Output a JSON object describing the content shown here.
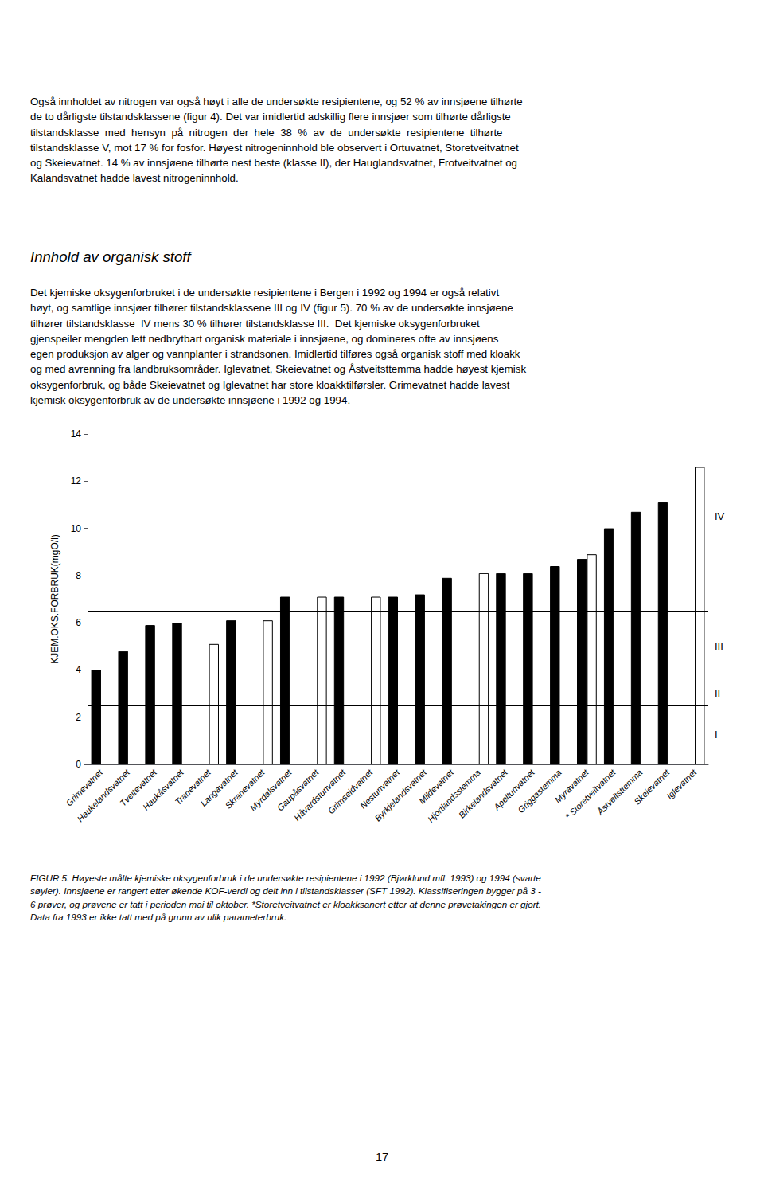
{
  "chart_data": {
    "type": "bar",
    "ylabel": "KJEM.OKS.FORBRUK(mgO/l)",
    "categories": [
      "Grimevatnet",
      "Haukelandsvatnet",
      "Tveitevatnet",
      "Haukåsvatnet",
      "Tranevatnet",
      "Langavatnet",
      "Skranevatnet",
      "Myrdalsvatnet",
      "Gaupåsvatnet",
      "Håvardstunvatnet",
      "Grimseidvatnet",
      "Nestunvatnet",
      "Byrkjelandsvatnet",
      "Mildevatnet",
      "Hjortlandsstemma",
      "Birkelandsvatnet",
      "Apeltunvatnet",
      "Griggastemma",
      "Myravatnet",
      "* Storetveitvatnet",
      "Åstveitsttemma",
      "Skeievatnet",
      "Iglevatnet"
    ],
    "series": [
      {
        "color": "black",
        "values": [
          4.0,
          4.8,
          5.9,
          6.0,
          null,
          6.1,
          null,
          7.1,
          null,
          7.1,
          null,
          7.1,
          7.2,
          7.9,
          null,
          8.1,
          8.1,
          8.4,
          8.7,
          10.0,
          10.7,
          11.1,
          null
        ]
      },
      {
        "color": "white",
        "values": [
          null,
          null,
          null,
          null,
          5.1,
          null,
          6.1,
          null,
          7.1,
          null,
          7.1,
          null,
          null,
          null,
          8.1,
          null,
          null,
          null,
          8.9,
          null,
          null,
          null,
          12.6
        ]
      }
    ],
    "ylim": [
      0,
      14
    ],
    "yticks": [
      0,
      2,
      4,
      6,
      8,
      10,
      12,
      14
    ],
    "class_lines": [
      2.5,
      3.5,
      6.5
    ],
    "annotations": [
      {
        "text": "I",
        "y": 1.25
      },
      {
        "text": "II",
        "y": 3.0
      },
      {
        "text": "III",
        "y": 5.0
      },
      {
        "text": "IV",
        "y": 10.5
      }
    ],
    "grid": false,
    "legend": false
  },
  "top_paragraph": "Også innholdet av nitrogen var også høyt i alle de undersøkte resipientene, og 52 % av innsjøene tilhørte\nde to dårligste tilstandsklassene (figur 4). Det var imidlertid adskillig flere innsjøer som tilhørte dårligste\ntilstandsklasse  med  hensyn  på  nitrogen  der  hele  38  %  av  de  undersøkte  resipientene  tilhørte\ntilstandsklasse V, mot 17 % for fosfor. Høyest nitrogeninnhold ble observert i Ortuvatnet, Storetveitvatnet\nog Skeievatnet. 14 % av innsjøene tilhørte nest beste (klasse II), der Hauglandsvatnet, Frotveitvatnet og\nKalandsvatnet hadde lavest nitrogeninnhold.",
  "section_heading": "Innhold av organisk stoff",
  "mid_paragraph": "Det kjemiske oksygenforbruket i de undersøkte resipientene i Bergen i 1992 og 1994 er også relativt\nhøyt, og samtlige innsjøer tilhører tilstandsklassene III og IV (figur 5). 70 % av de undersøkte innsjøene\ntilhører tilstandsklasse  IV mens 30 % tilhører tilstandsklasse III.  Det kjemiske oksygenforbruket\ngjenspeiler mengden lett nedbrytbart organisk materiale i innsjøene, og domineres ofte av innsjøens\negen produksjon av alger og vannplanter i strandsonen. Imidlertid tilføres også organisk stoff med kloakk\nog med avrenning fra landbruksområder. Iglevatnet, Skeievatnet og Åstveitsttemma hadde høyest kjemisk\noksygenforbruk, og både Skeievatnet og Iglevatnet har store kloakktilførsler. Grimevatnet hadde lavest\nkjemisk oksygenforbruk av de undersøkte innsjøene i 1992 og 1994.",
  "caption": "FIGUR 5. Høyeste målte kjemiske oksygenforbruk i de undersøkte resipientene i 1992 (Bjørklund mfl. 1993) og 1994 (svarte\nsøyler). Innsjøene er rangert etter økende KOF-verdi og delt inn i tilstandsklasser (SFT 1992). Klassifiseringen bygger på 3 -\n6 prøver, og prøvene er tatt i perioden mai til oktober. *Storetveitvatnet er kloakksanert etter at denne prøvetakingen er gjort.\nData fra 1993 er ikke tatt med på grunn av ulik parameterbruk.",
  "page_number": "17"
}
